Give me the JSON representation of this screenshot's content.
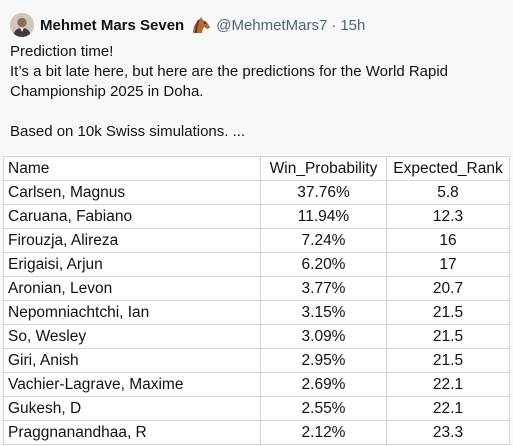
{
  "tweet": {
    "author_name": "Mehmet Mars Seven",
    "author_emoji": "horse-head-icon",
    "handle": "@MehmetMars7",
    "separator": "·",
    "timestamp": "15h",
    "text_line1": "Prediction time!",
    "text_line2": "It’s a bit late here, but here are the predictions for the World Rapid Championship 2025 in Doha.",
    "text_line3": "Based on 10k Swiss simulations. ..."
  },
  "table": {
    "headers": [
      "Name",
      "Win_Probability",
      "Expected_Rank"
    ],
    "rows": [
      {
        "name": "Carlsen, Magnus",
        "win": "37.76%",
        "rank": "5.8"
      },
      {
        "name": "Caruana, Fabiano",
        "win": "11.94%",
        "rank": "12.3"
      },
      {
        "name": "Firouzja, Alireza",
        "win": "7.24%",
        "rank": "16"
      },
      {
        "name": "Erigaisi, Arjun",
        "win": "6.20%",
        "rank": "17"
      },
      {
        "name": "Aronian, Levon",
        "win": "3.77%",
        "rank": "20.7"
      },
      {
        "name": "Nepomniachtchi, Ian",
        "win": "3.15%",
        "rank": "21.5"
      },
      {
        "name": "So, Wesley",
        "win": "3.09%",
        "rank": "21.5"
      },
      {
        "name": "Giri, Anish",
        "win": "2.95%",
        "rank": "21.5"
      },
      {
        "name": "Vachier-Lagrave, Maxime",
        "win": "2.69%",
        "rank": "22.1"
      },
      {
        "name": "Gukesh, D",
        "win": "2.55%",
        "rank": "22.1"
      },
      {
        "name": "Praggnanandhaa, R",
        "win": "2.12%",
        "rank": "23.3"
      }
    ]
  }
}
